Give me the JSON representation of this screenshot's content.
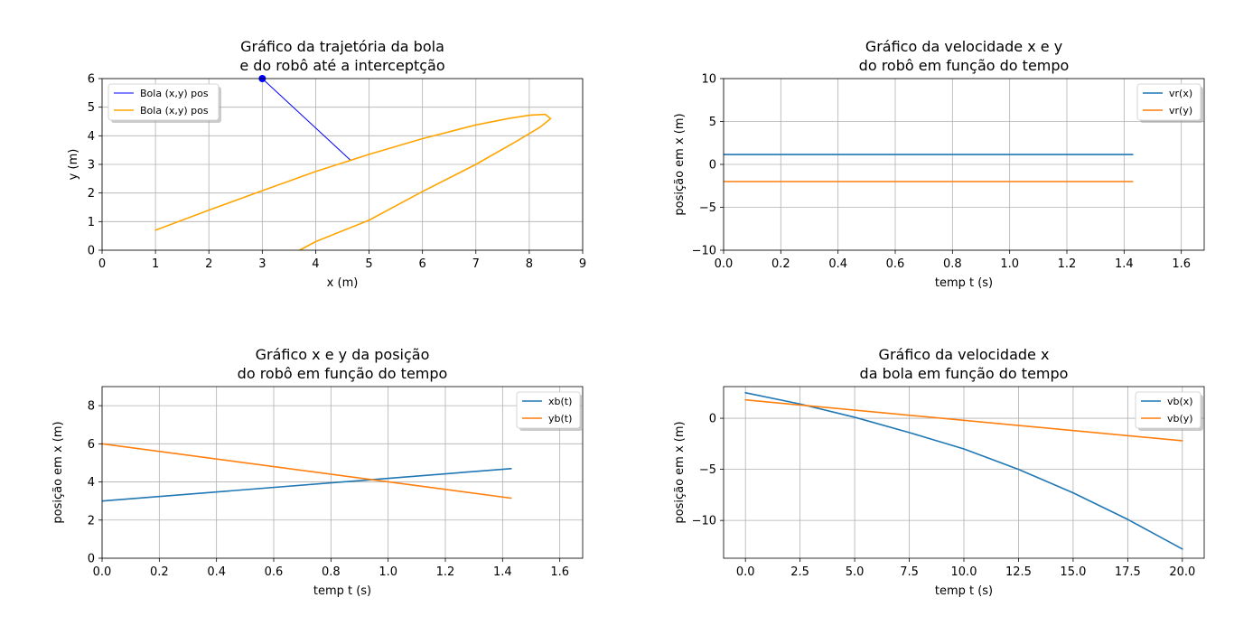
{
  "chart_data": [
    {
      "type": "line",
      "title": [
        "Gráfico da trajetória da bola",
        "e do robô até a interceptção"
      ],
      "xlabel": "x (m)",
      "ylabel": "y (m)",
      "xlim": [
        0,
        9
      ],
      "ylim": [
        0,
        6
      ],
      "xticks": [
        0,
        1,
        2,
        3,
        4,
        5,
        6,
        7,
        8,
        9
      ],
      "yticks": [
        0,
        1,
        2,
        3,
        4,
        5,
        6
      ],
      "xtick_labels": [
        "0",
        "1",
        "2",
        "3",
        "4",
        "5",
        "6",
        "7",
        "8",
        "9"
      ],
      "ytick_labels": [
        "0",
        "1",
        "2",
        "3",
        "4",
        "5",
        "6"
      ],
      "grid": true,
      "legend_position": "top-left",
      "series": [
        {
          "name": "Bola (x,y) pos",
          "color": "#0000ff",
          "line_width": 1,
          "start_marker": true,
          "points": [
            [
              3.0,
              6.0
            ],
            [
              4.65,
              3.15
            ]
          ]
        },
        {
          "name": "Bola (x,y) pos",
          "color": "#ffa500",
          "line_width": 1.6,
          "points": [
            [
              1.0,
              0.7
            ],
            [
              2.0,
              1.4
            ],
            [
              3.0,
              2.08
            ],
            [
              4.0,
              2.75
            ],
            [
              5.0,
              3.35
            ],
            [
              6.0,
              3.9
            ],
            [
              7.0,
              4.38
            ],
            [
              7.6,
              4.6
            ],
            [
              8.0,
              4.72
            ],
            [
              8.3,
              4.75
            ],
            [
              8.4,
              4.6
            ],
            [
              8.2,
              4.3
            ],
            [
              7.8,
              3.85
            ],
            [
              7.0,
              3.0
            ],
            [
              6.0,
              2.05
            ],
            [
              5.0,
              1.05
            ],
            [
              4.0,
              0.3
            ],
            [
              3.7,
              0.0
            ]
          ]
        }
      ]
    },
    {
      "type": "line",
      "title": [
        "Gráfico da velocidade x e y",
        "do robô em função do tempo"
      ],
      "xlabel": "temp t (s)",
      "ylabel": "posição em x (m)",
      "xlim": [
        0,
        1.68
      ],
      "ylim": [
        -10,
        10
      ],
      "xticks": [
        0.0,
        0.2,
        0.4,
        0.6,
        0.8,
        1.0,
        1.2,
        1.4,
        1.6
      ],
      "yticks": [
        -10,
        -5,
        0,
        5,
        10
      ],
      "xtick_labels": [
        "0.0",
        "0.2",
        "0.4",
        "0.6",
        "0.8",
        "1.0",
        "1.2",
        "1.4",
        "1.6"
      ],
      "ytick_labels": [
        "−10",
        "−5",
        "0",
        "5",
        "10"
      ],
      "grid": true,
      "legend_position": "top-right",
      "series": [
        {
          "name": "vr(x)",
          "color": "#1f77b4",
          "line_width": 1.6,
          "points": [
            [
              0.0,
              1.15
            ],
            [
              1.43,
              1.15
            ]
          ]
        },
        {
          "name": "vr(y)",
          "color": "#ff7f0e",
          "line_width": 1.6,
          "points": [
            [
              0.0,
              -2.0
            ],
            [
              1.43,
              -2.0
            ]
          ]
        }
      ]
    },
    {
      "type": "line",
      "title": [
        "Gráfico x e y da posição",
        "do robô em função do tempo"
      ],
      "xlabel": "temp t (s)",
      "ylabel": "posição em x (m)",
      "xlim": [
        0,
        1.68
      ],
      "ylim": [
        0,
        9
      ],
      "xticks": [
        0.0,
        0.2,
        0.4,
        0.6,
        0.8,
        1.0,
        1.2,
        1.4,
        1.6
      ],
      "yticks": [
        0,
        2,
        4,
        6,
        8
      ],
      "xtick_labels": [
        "0.0",
        "0.2",
        "0.4",
        "0.6",
        "0.8",
        "1.0",
        "1.2",
        "1.4",
        "1.6"
      ],
      "ytick_labels": [
        "0",
        "2",
        "4",
        "6",
        "8"
      ],
      "grid": true,
      "legend_position": "top-right",
      "series": [
        {
          "name": "xb(t)",
          "color": "#1f77b4",
          "line_width": 1.6,
          "points": [
            [
              0.0,
              3.0
            ],
            [
              1.43,
              4.7
            ]
          ]
        },
        {
          "name": "yb(t)",
          "color": "#ff7f0e",
          "line_width": 1.6,
          "points": [
            [
              0.0,
              6.0
            ],
            [
              1.43,
              3.15
            ]
          ]
        }
      ]
    },
    {
      "type": "line",
      "title": [
        "Gráfico da velocidade x",
        "da bola em função do tempo"
      ],
      "xlabel": "temp t (s)",
      "ylabel": "posição em x (m)",
      "xlim": [
        -1,
        21
      ],
      "ylim": [
        -13.7,
        3.1
      ],
      "xticks": [
        0.0,
        2.5,
        5.0,
        7.5,
        10.0,
        12.5,
        15.0,
        17.5,
        20.0
      ],
      "yticks": [
        -10,
        -5,
        0
      ],
      "xtick_labels": [
        "0.0",
        "2.5",
        "5.0",
        "7.5",
        "10.0",
        "12.5",
        "15.0",
        "17.5",
        "20.0"
      ],
      "ytick_labels": [
        "−10",
        "−5",
        "0"
      ],
      "grid": true,
      "legend_position": "top-right",
      "series": [
        {
          "name": "vb(x)",
          "color": "#1f77b4",
          "line_width": 1.6,
          "points": [
            [
              0,
              2.5
            ],
            [
              2.5,
              1.4
            ],
            [
              5,
              0.1
            ],
            [
              7.5,
              -1.4
            ],
            [
              10,
              -3.0
            ],
            [
              12.5,
              -5.0
            ],
            [
              15,
              -7.3
            ],
            [
              17.5,
              -9.9
            ],
            [
              20,
              -12.8
            ]
          ]
        },
        {
          "name": "vb(y)",
          "color": "#ff7f0e",
          "line_width": 1.6,
          "points": [
            [
              0,
              1.8
            ],
            [
              20,
              -2.2
            ]
          ]
        }
      ]
    }
  ]
}
